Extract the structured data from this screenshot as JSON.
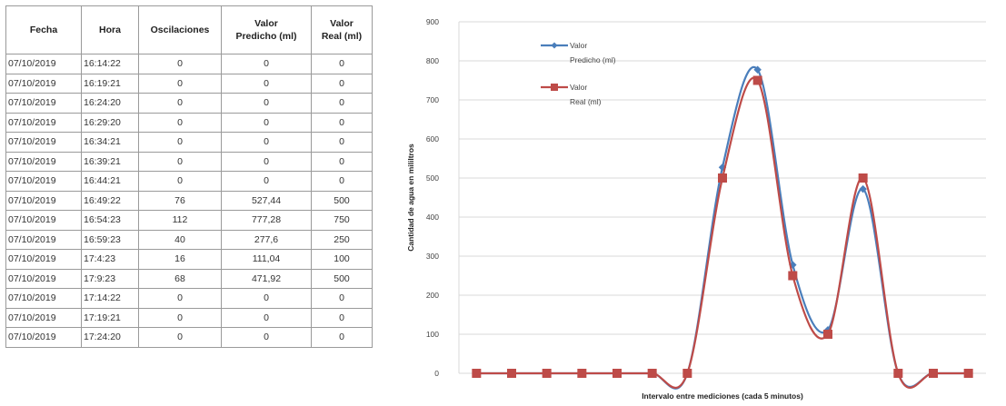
{
  "table": {
    "headers": {
      "fecha": "Fecha",
      "hora": "Hora",
      "oscilaciones": "Oscilaciones",
      "predicho_line1": "Valor",
      "predicho_line2": "Predicho (ml)",
      "real_line1": "Valor",
      "real_line2": "Real (ml)"
    },
    "rows": [
      {
        "fecha": "07/10/2019",
        "hora": "16:14:22",
        "oscilaciones": "0",
        "predicho": "0",
        "real": "0"
      },
      {
        "fecha": "07/10/2019",
        "hora": "16:19:21",
        "oscilaciones": "0",
        "predicho": "0",
        "real": "0"
      },
      {
        "fecha": "07/10/2019",
        "hora": "16:24:20",
        "oscilaciones": "0",
        "predicho": "0",
        "real": "0"
      },
      {
        "fecha": "07/10/2019",
        "hora": "16:29:20",
        "oscilaciones": "0",
        "predicho": "0",
        "real": "0"
      },
      {
        "fecha": "07/10/2019",
        "hora": "16:34:21",
        "oscilaciones": "0",
        "predicho": "0",
        "real": "0"
      },
      {
        "fecha": "07/10/2019",
        "hora": "16:39:21",
        "oscilaciones": "0",
        "predicho": "0",
        "real": "0"
      },
      {
        "fecha": "07/10/2019",
        "hora": "16:44:21",
        "oscilaciones": "0",
        "predicho": "0",
        "real": "0"
      },
      {
        "fecha": "07/10/2019",
        "hora": "16:49:22",
        "oscilaciones": "76",
        "predicho": "527,44",
        "real": "500"
      },
      {
        "fecha": "07/10/2019",
        "hora": "16:54:23",
        "oscilaciones": "112",
        "predicho": "777,28",
        "real": "750"
      },
      {
        "fecha": "07/10/2019",
        "hora": "16:59:23",
        "oscilaciones": "40",
        "predicho": "277,6",
        "real": "250"
      },
      {
        "fecha": "07/10/2019",
        "hora": "17:4:23",
        "oscilaciones": "16",
        "predicho": "111,04",
        "real": "100"
      },
      {
        "fecha": "07/10/2019",
        "hora": "17:9:23",
        "oscilaciones": "68",
        "predicho": "471,92",
        "real": "500"
      },
      {
        "fecha": "07/10/2019",
        "hora": "17:14:22",
        "oscilaciones": "0",
        "predicho": "0",
        "real": "0"
      },
      {
        "fecha": "07/10/2019",
        "hora": "17:19:21",
        "oscilaciones": "0",
        "predicho": "0",
        "real": "0"
      },
      {
        "fecha": "07/10/2019",
        "hora": "17:24:20",
        "oscilaciones": "0",
        "predicho": "0",
        "real": "0"
      }
    ]
  },
  "chart_data": {
    "type": "line",
    "title": "",
    "xlabel": "Intervalo entre mediciones (cada 5 minutos)",
    "ylabel": "Cantidad de agua en mililtros",
    "ylim": [
      0,
      900
    ],
    "yticks": [
      0,
      100,
      200,
      300,
      400,
      500,
      600,
      700,
      800,
      900
    ],
    "grid": true,
    "legend_position": "top-left",
    "smooth": true,
    "x": [
      1,
      2,
      3,
      4,
      5,
      6,
      7,
      8,
      9,
      10,
      11,
      12,
      13,
      14,
      15
    ],
    "series": [
      {
        "name_line1": "Valor",
        "name_line2": "Predicho (ml)",
        "color": "#4a7ebb",
        "marker": "diamond",
        "values": [
          0,
          0,
          0,
          0,
          0,
          0,
          0,
          527.44,
          777.28,
          277.6,
          111.04,
          471.92,
          0,
          0,
          0
        ]
      },
      {
        "name_line1": "Valor",
        "name_line2": "Real (ml)",
        "color": "#be4b48",
        "marker": "square",
        "values": [
          0,
          0,
          0,
          0,
          0,
          0,
          0,
          500,
          750,
          250,
          100,
          500,
          0,
          0,
          0
        ]
      }
    ]
  }
}
